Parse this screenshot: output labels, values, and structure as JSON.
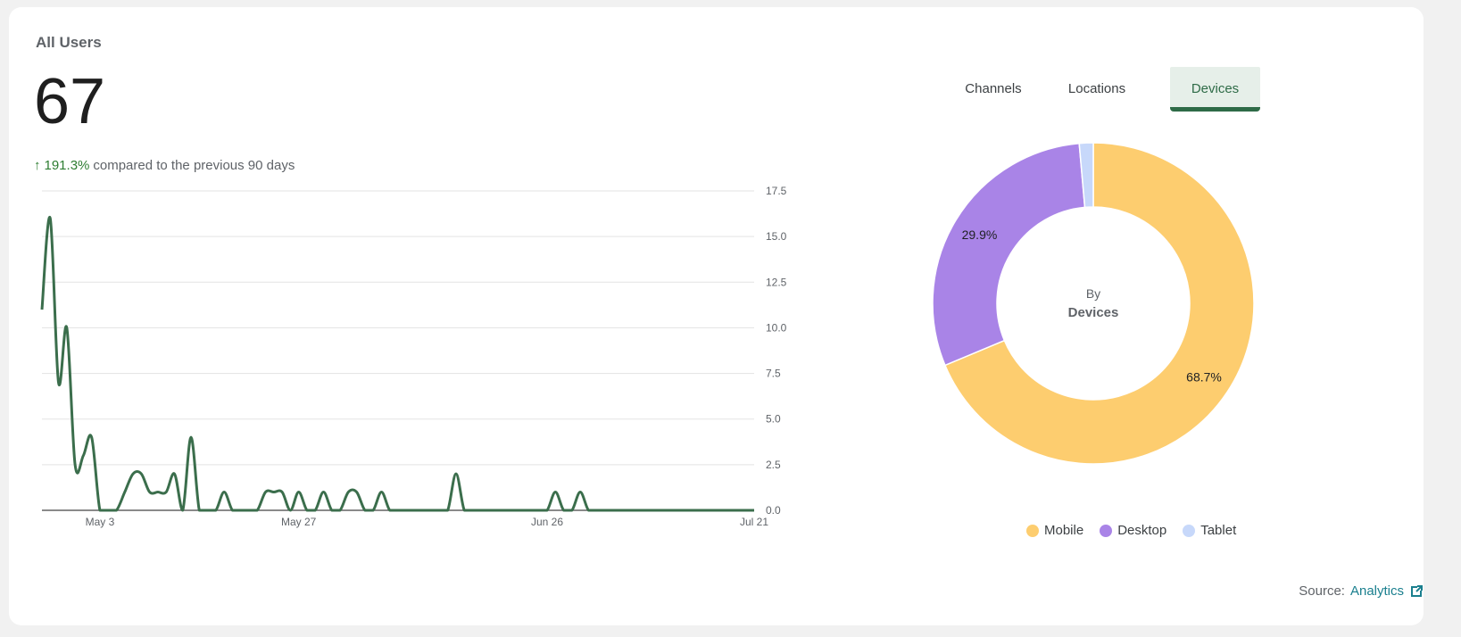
{
  "card": {
    "title": "All Users",
    "total": "67",
    "change_pct": "191.3%",
    "change_text": "compared to the previous 90 days"
  },
  "tabs": [
    {
      "label": "Channels",
      "active": false
    },
    {
      "label": "Locations",
      "active": false
    },
    {
      "label": "Devices",
      "active": true
    }
  ],
  "donut": {
    "center_top": "By",
    "center_bottom": "Devices"
  },
  "legend": [
    {
      "label": "Mobile",
      "color": "#fdcd6f"
    },
    {
      "label": "Desktop",
      "color": "#a984e7"
    },
    {
      "label": "Tablet",
      "color": "#c7d8fa"
    }
  ],
  "source": {
    "prefix": "Source:",
    "link_label": "Analytics",
    "icon": "external-link-icon"
  },
  "chart_data": [
    {
      "type": "line",
      "x": [
        "Apr 26",
        "Apr 27",
        "Apr 28",
        "Apr 29",
        "Apr 30",
        "May 1",
        "May 2",
        "May 3",
        "May 4",
        "May 5",
        "May 6",
        "May 7",
        "May 8",
        "May 9",
        "May 10",
        "May 11",
        "May 12",
        "May 13",
        "May 14",
        "May 15",
        "May 16",
        "May 17",
        "May 18",
        "May 19",
        "May 20",
        "May 21",
        "May 22",
        "May 23",
        "May 24",
        "May 25",
        "May 26",
        "May 27",
        "May 28",
        "May 29",
        "May 30",
        "May 31",
        "Jun 1",
        "Jun 2",
        "Jun 3",
        "Jun 4",
        "Jun 5",
        "Jun 6",
        "Jun 7",
        "Jun 8",
        "Jun 9",
        "Jun 10",
        "Jun 11",
        "Jun 12",
        "Jun 13",
        "Jun 14",
        "Jun 15",
        "Jun 16",
        "Jun 17",
        "Jun 18",
        "Jun 19",
        "Jun 20",
        "Jun 21",
        "Jun 22",
        "Jun 23",
        "Jun 24",
        "Jun 25",
        "Jun 26",
        "Jun 27",
        "Jun 28",
        "Jun 29",
        "Jun 30",
        "Jul 1",
        "Jul 2",
        "Jul 3",
        "Jul 4",
        "Jul 5",
        "Jul 6",
        "Jul 7",
        "Jul 8",
        "Jul 9",
        "Jul 10",
        "Jul 11",
        "Jul 12",
        "Jul 13",
        "Jul 14",
        "Jul 15",
        "Jul 16",
        "Jul 17",
        "Jul 18",
        "Jul 19",
        "Jul 20",
        "Jul 21"
      ],
      "series": [
        {
          "values": [
            11,
            16,
            7,
            10,
            2.5,
            3,
            4,
            0,
            0,
            0,
            1,
            2,
            2,
            1,
            1,
            1,
            2,
            0,
            4,
            0,
            0,
            0,
            1,
            0,
            0,
            0,
            0,
            1,
            1,
            1,
            0,
            1,
            0,
            0,
            1,
            0,
            0,
            1,
            1,
            0,
            0,
            1,
            0,
            0,
            0,
            0,
            0,
            0,
            0,
            0,
            2,
            0,
            0,
            0,
            0,
            0,
            0,
            0,
            0,
            0,
            0,
            0,
            1,
            0,
            0,
            1,
            0,
            0,
            0,
            0,
            0,
            0,
            0,
            0,
            0,
            0,
            0,
            0,
            0,
            0,
            0,
            0,
            0,
            0,
            0,
            0,
            0
          ]
        }
      ],
      "x_tick_labels": [
        "May 3",
        "May 27",
        "Jun 26",
        "Jul 21"
      ],
      "y_ticks": [
        0.0,
        2.5,
        5.0,
        7.5,
        10.0,
        12.5,
        15.0,
        17.5
      ],
      "ylim": [
        0,
        17.5
      ],
      "grid": true,
      "color": "#3b6e4c"
    },
    {
      "type": "pie",
      "categories": [
        "Mobile",
        "Desktop",
        "Tablet"
      ],
      "values": [
        68.7,
        29.9,
        1.4
      ],
      "data_labels": [
        "68.7%",
        "29.9%",
        ""
      ],
      "colors": [
        "#fdcd6f",
        "#a984e7",
        "#c7d8fa"
      ]
    }
  ]
}
